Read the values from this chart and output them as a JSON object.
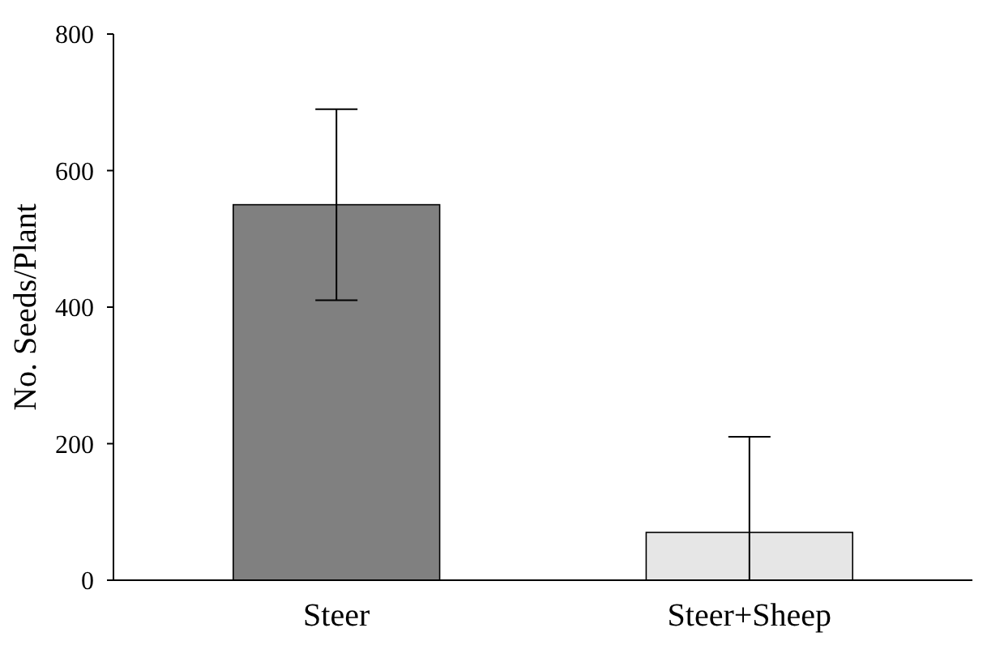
{
  "chart_data": {
    "type": "bar",
    "ylabel": "No. Seeds/Plant",
    "categories": [
      "Steer",
      "Steer+Sheep"
    ],
    "values": [
      550,
      70
    ],
    "errors": [
      [
        410,
        690
      ],
      [
        0,
        210
      ]
    ],
    "colors": [
      "#808080",
      "#e6e6e6"
    ],
    "ylim": [
      0,
      800
    ],
    "yticks": [
      0,
      200,
      400,
      600,
      800
    ],
    "grid": false
  }
}
